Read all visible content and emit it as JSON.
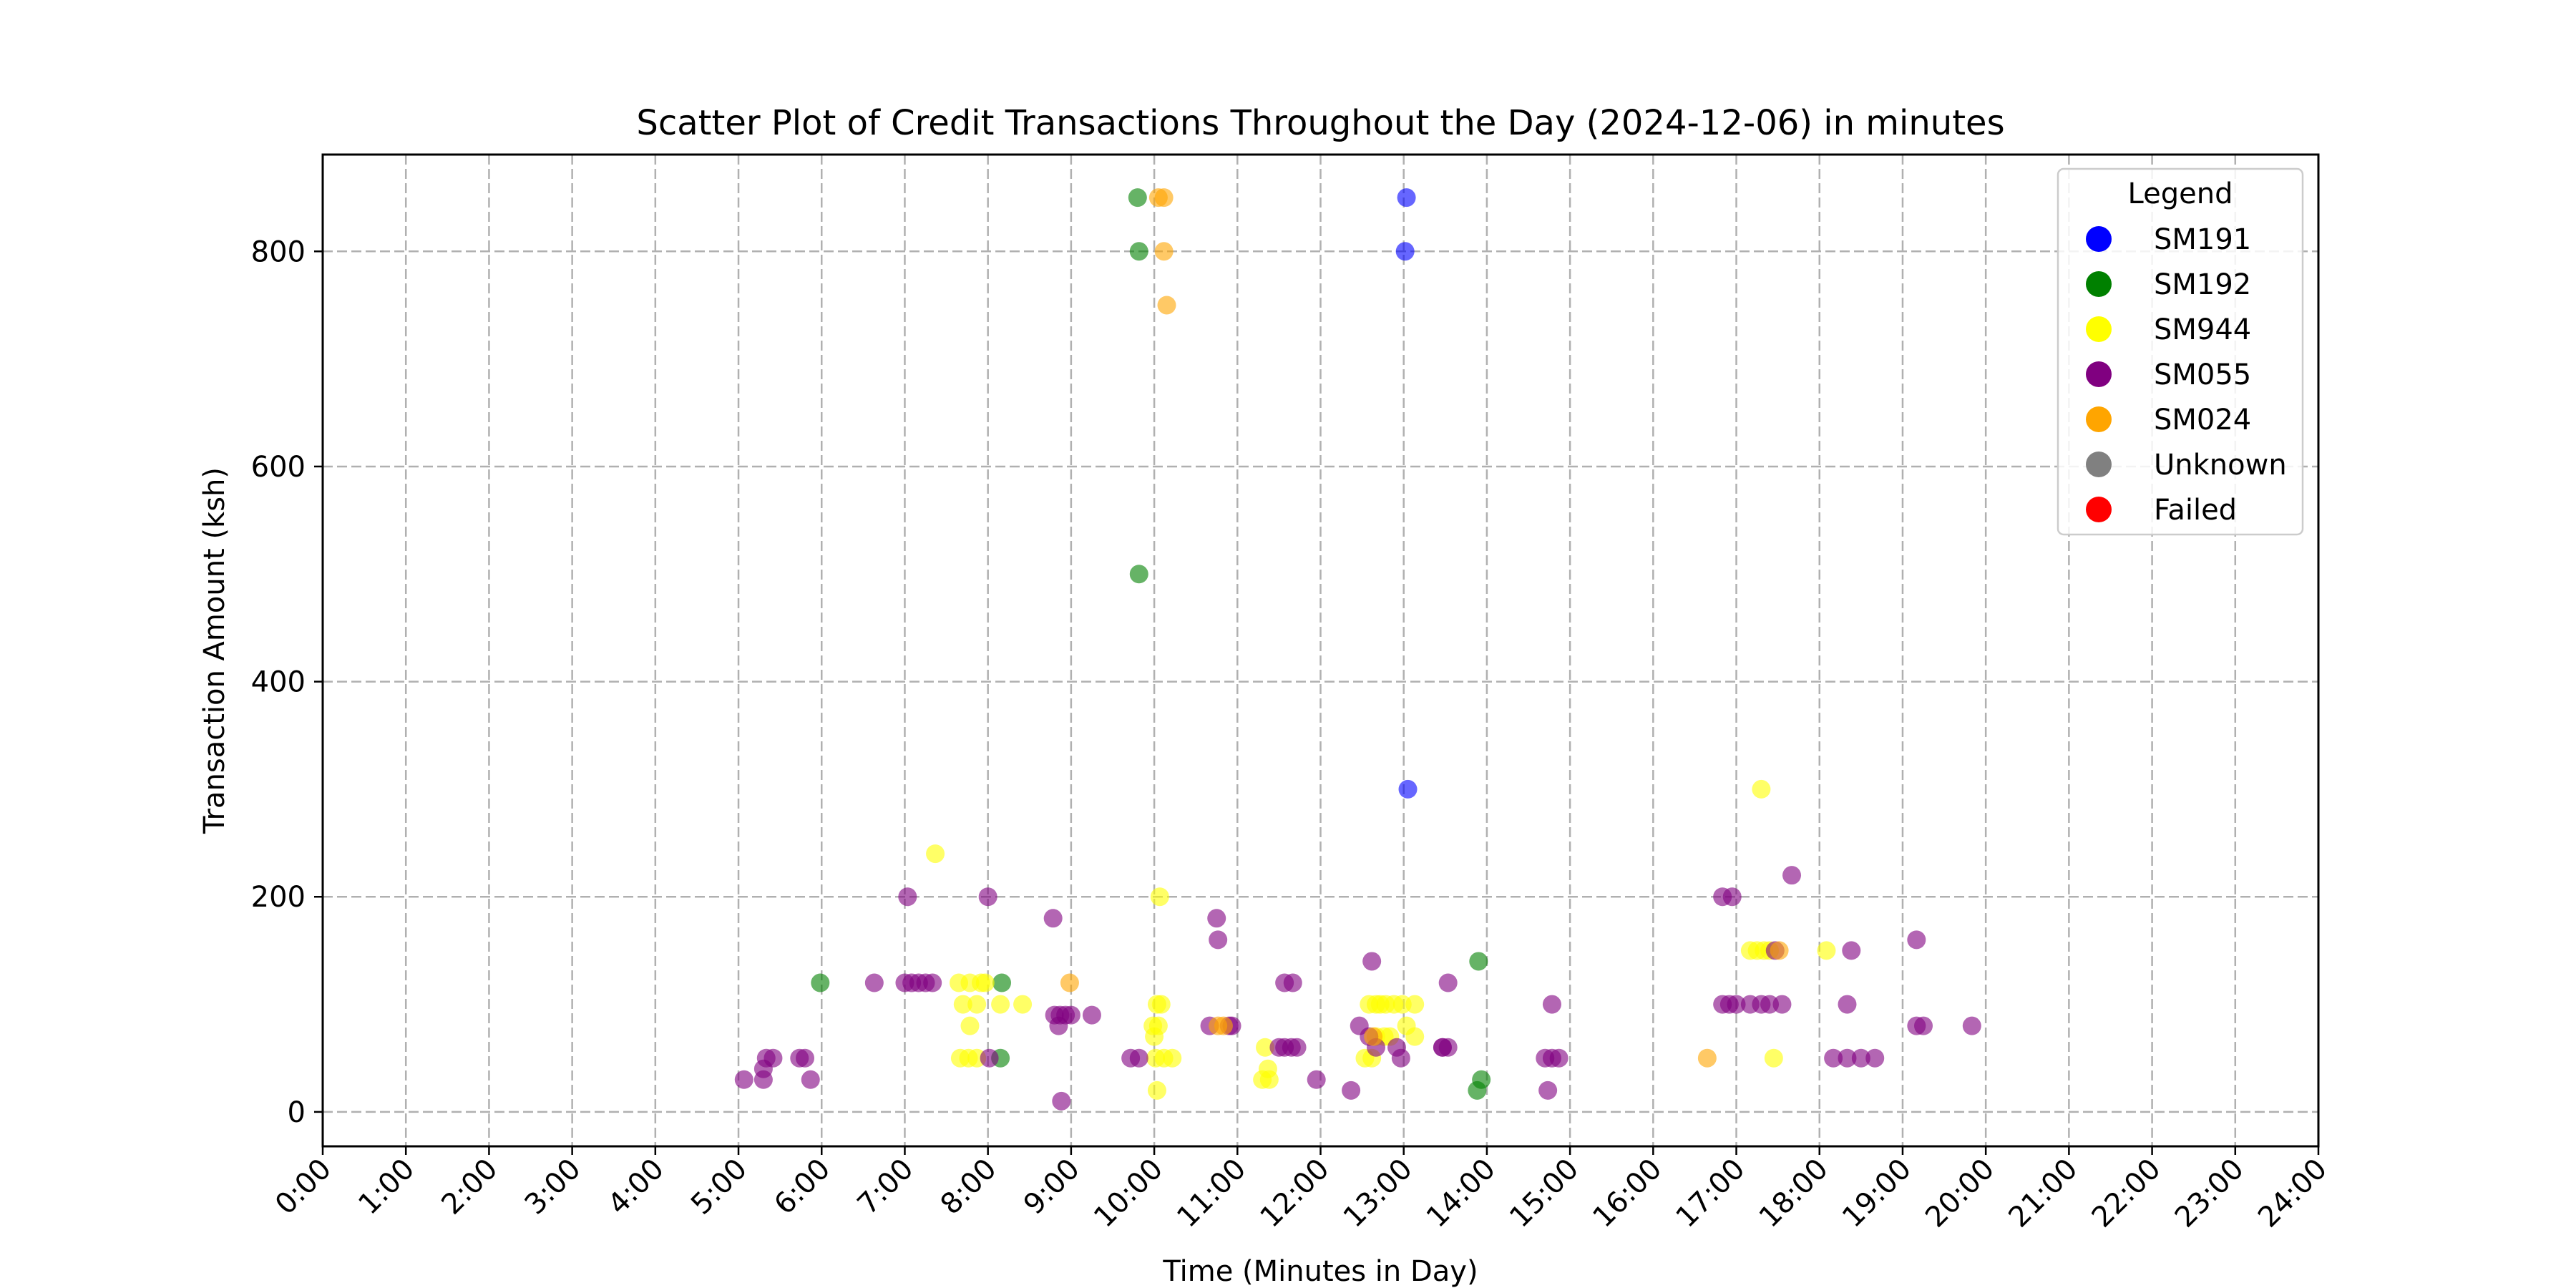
{
  "chart_data": {
    "type": "scatter",
    "title": "Scatter Plot of Credit Transactions Throughout the Day (2024-12-06) in minutes",
    "xlabel": "Time (Minutes in Day)",
    "ylabel": "Transaction Amount (ksh)",
    "xlim": [
      0,
      1440
    ],
    "ylim": [
      -32,
      890
    ],
    "xticks": [
      0,
      60,
      120,
      180,
      240,
      300,
      360,
      420,
      480,
      540,
      600,
      660,
      720,
      780,
      840,
      900,
      960,
      1020,
      1080,
      1140,
      1200,
      1260,
      1320,
      1380,
      1440
    ],
    "xtick_labels": [
      "0:00",
      "1:00",
      "2:00",
      "3:00",
      "4:00",
      "5:00",
      "6:00",
      "7:00",
      "8:00",
      "9:00",
      "10:00",
      "11:00",
      "12:00",
      "13:00",
      "14:00",
      "15:00",
      "16:00",
      "17:00",
      "18:00",
      "19:00",
      "20:00",
      "21:00",
      "22:00",
      "23:00",
      "24:00"
    ],
    "yticks": [
      0,
      200,
      400,
      600,
      800
    ],
    "ytick_labels": [
      "0",
      "200",
      "400",
      "600",
      "800"
    ],
    "grid": true,
    "legend": {
      "title": "Legend",
      "placement": "top-right"
    },
    "series": [
      {
        "name": "SM191",
        "color": "#0000ff",
        "points": [
          [
            782,
            850
          ],
          [
            781,
            800
          ],
          [
            783,
            300
          ]
        ]
      },
      {
        "name": "SM192",
        "color": "#008000",
        "points": [
          [
            588,
            850
          ],
          [
            589,
            800
          ],
          [
            589,
            500
          ],
          [
            359,
            120
          ],
          [
            490,
            120
          ],
          [
            489,
            50
          ],
          [
            834,
            140
          ],
          [
            833,
            20
          ],
          [
            836,
            30
          ]
        ]
      },
      {
        "name": "SM944",
        "color": "#ffff00",
        "points": [
          [
            442,
            240
          ],
          [
            459,
            120
          ],
          [
            467,
            120
          ],
          [
            475,
            120
          ],
          [
            478,
            120
          ],
          [
            462,
            100
          ],
          [
            472,
            100
          ],
          [
            489,
            100
          ],
          [
            505,
            100
          ],
          [
            467,
            80
          ],
          [
            460,
            50
          ],
          [
            466,
            50
          ],
          [
            472,
            50
          ],
          [
            604,
            200
          ],
          [
            602,
            100
          ],
          [
            605,
            100
          ],
          [
            599,
            80
          ],
          [
            603,
            80
          ],
          [
            600,
            70
          ],
          [
            601,
            50
          ],
          [
            607,
            50
          ],
          [
            613,
            50
          ],
          [
            602,
            20
          ],
          [
            680,
            60
          ],
          [
            682,
            40
          ],
          [
            678,
            30
          ],
          [
            683,
            30
          ],
          [
            755,
            100
          ],
          [
            760,
            100
          ],
          [
            763,
            100
          ],
          [
            767,
            100
          ],
          [
            773,
            100
          ],
          [
            779,
            100
          ],
          [
            760,
            70
          ],
          [
            766,
            70
          ],
          [
            770,
            70
          ],
          [
            788,
            100
          ],
          [
            782,
            80
          ],
          [
            788,
            70
          ],
          [
            752,
            50
          ],
          [
            757,
            50
          ],
          [
            1038,
            300
          ],
          [
            1030,
            150
          ],
          [
            1035,
            150
          ],
          [
            1040,
            150
          ],
          [
            1044,
            150
          ],
          [
            1085,
            150
          ],
          [
            1047,
            50
          ]
        ]
      },
      {
        "name": "SM055",
        "color": "#800080",
        "points": [
          [
            304,
            30
          ],
          [
            318,
            30
          ],
          [
            318,
            40
          ],
          [
            320,
            50
          ],
          [
            325,
            50
          ],
          [
            344,
            50
          ],
          [
            348,
            50
          ],
          [
            352,
            30
          ],
          [
            398,
            120
          ],
          [
            420,
            120
          ],
          [
            425,
            120
          ],
          [
            430,
            120
          ],
          [
            435,
            120
          ],
          [
            440,
            120
          ],
          [
            422,
            200
          ],
          [
            480,
            200
          ],
          [
            481,
            50
          ],
          [
            527,
            180
          ],
          [
            528,
            90
          ],
          [
            532,
            90
          ],
          [
            536,
            90
          ],
          [
            540,
            90
          ],
          [
            531,
            80
          ],
          [
            555,
            90
          ],
          [
            533,
            10
          ],
          [
            583,
            50
          ],
          [
            589,
            50
          ],
          [
            640,
            80
          ],
          [
            654,
            80
          ],
          [
            656,
            80
          ],
          [
            645,
            180
          ],
          [
            646,
            160
          ],
          [
            694,
            120
          ],
          [
            700,
            120
          ],
          [
            690,
            60
          ],
          [
            694,
            60
          ],
          [
            699,
            60
          ],
          [
            703,
            60
          ],
          [
            717,
            30
          ],
          [
            742,
            20
          ],
          [
            757,
            140
          ],
          [
            748,
            80
          ],
          [
            755,
            70
          ],
          [
            760,
            60
          ],
          [
            775,
            60
          ],
          [
            778,
            50
          ],
          [
            812,
            120
          ],
          [
            808,
            60
          ],
          [
            812,
            60
          ],
          [
            808,
            60
          ],
          [
            887,
            100
          ],
          [
            882,
            50
          ],
          [
            887,
            50
          ],
          [
            892,
            50
          ],
          [
            884,
            20
          ],
          [
            1010,
            200
          ],
          [
            1017,
            200
          ],
          [
            1010,
            100
          ],
          [
            1015,
            100
          ],
          [
            1020,
            100
          ],
          [
            1038,
            100
          ],
          [
            1044,
            100
          ],
          [
            1053,
            100
          ],
          [
            1030,
            100
          ],
          [
            1048,
            150
          ],
          [
            1060,
            220
          ],
          [
            1100,
            100
          ],
          [
            1103,
            150
          ],
          [
            1090,
            50
          ],
          [
            1100,
            50
          ],
          [
            1110,
            50
          ],
          [
            1120,
            50
          ],
          [
            1150,
            160
          ],
          [
            1150,
            80
          ],
          [
            1155,
            80
          ],
          [
            1190,
            80
          ]
        ]
      },
      {
        "name": "SM024",
        "color": "#ffa500",
        "points": [
          [
            603,
            850
          ],
          [
            607,
            850
          ],
          [
            607,
            800
          ],
          [
            609,
            750
          ],
          [
            539,
            120
          ],
          [
            646,
            80
          ],
          [
            650,
            80
          ],
          [
            999,
            50
          ],
          [
            1051,
            150
          ],
          [
            758,
            70
          ]
        ]
      },
      {
        "name": "Unknown",
        "color": "#808080",
        "points": []
      },
      {
        "name": "Failed",
        "color": "#ff0000",
        "points": []
      }
    ]
  }
}
